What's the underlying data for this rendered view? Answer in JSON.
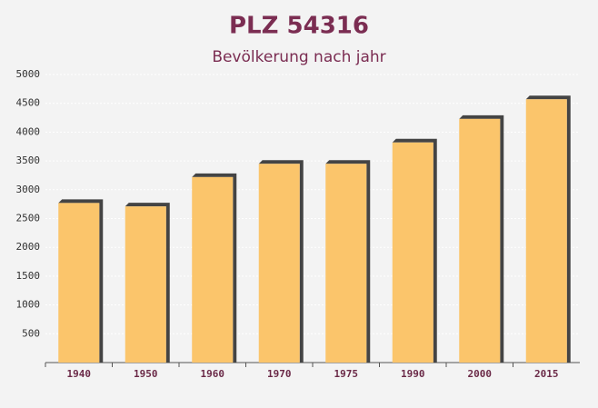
{
  "chart_data": {
    "type": "bar",
    "title": "PLZ 54316",
    "subtitle": "Bevölkerung nach jahr",
    "categories": [
      "1940",
      "1950",
      "1960",
      "1970",
      "1975",
      "1990",
      "2000",
      "2015"
    ],
    "values": [
      2770,
      2710,
      3220,
      3450,
      3450,
      3820,
      4230,
      4570
    ],
    "color": "#fbc56b",
    "ylim": [
      0,
      5000
    ],
    "yticks": [
      500,
      1000,
      1500,
      2000,
      2500,
      3000,
      3500,
      4000,
      4500,
      5000
    ],
    "grid": true
  }
}
